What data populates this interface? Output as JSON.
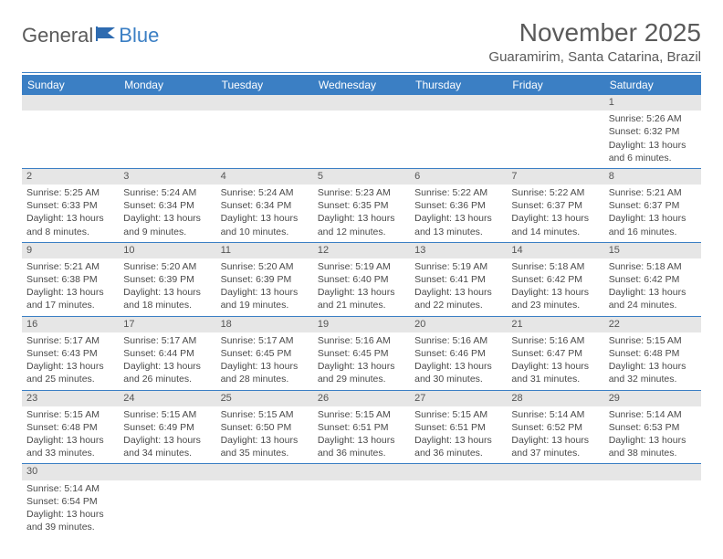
{
  "logo": {
    "text1": "General",
    "text2": "Blue"
  },
  "title": "November 2025",
  "location": "Guaramirim, Santa Catarina, Brazil",
  "colors": {
    "accent": "#3b7fc4",
    "daynum_bg": "#e6e6e6",
    "text": "#4a4a4a"
  },
  "weekdays": [
    "Sunday",
    "Monday",
    "Tuesday",
    "Wednesday",
    "Thursday",
    "Friday",
    "Saturday"
  ],
  "weeks": [
    [
      null,
      null,
      null,
      null,
      null,
      null,
      {
        "d": "1",
        "sr": "Sunrise: 5:26 AM",
        "ss": "Sunset: 6:32 PM",
        "dl": "Daylight: 13 hours and 6 minutes."
      }
    ],
    [
      {
        "d": "2",
        "sr": "Sunrise: 5:25 AM",
        "ss": "Sunset: 6:33 PM",
        "dl": "Daylight: 13 hours and 8 minutes."
      },
      {
        "d": "3",
        "sr": "Sunrise: 5:24 AM",
        "ss": "Sunset: 6:34 PM",
        "dl": "Daylight: 13 hours and 9 minutes."
      },
      {
        "d": "4",
        "sr": "Sunrise: 5:24 AM",
        "ss": "Sunset: 6:34 PM",
        "dl": "Daylight: 13 hours and 10 minutes."
      },
      {
        "d": "5",
        "sr": "Sunrise: 5:23 AM",
        "ss": "Sunset: 6:35 PM",
        "dl": "Daylight: 13 hours and 12 minutes."
      },
      {
        "d": "6",
        "sr": "Sunrise: 5:22 AM",
        "ss": "Sunset: 6:36 PM",
        "dl": "Daylight: 13 hours and 13 minutes."
      },
      {
        "d": "7",
        "sr": "Sunrise: 5:22 AM",
        "ss": "Sunset: 6:37 PM",
        "dl": "Daylight: 13 hours and 14 minutes."
      },
      {
        "d": "8",
        "sr": "Sunrise: 5:21 AM",
        "ss": "Sunset: 6:37 PM",
        "dl": "Daylight: 13 hours and 16 minutes."
      }
    ],
    [
      {
        "d": "9",
        "sr": "Sunrise: 5:21 AM",
        "ss": "Sunset: 6:38 PM",
        "dl": "Daylight: 13 hours and 17 minutes."
      },
      {
        "d": "10",
        "sr": "Sunrise: 5:20 AM",
        "ss": "Sunset: 6:39 PM",
        "dl": "Daylight: 13 hours and 18 minutes."
      },
      {
        "d": "11",
        "sr": "Sunrise: 5:20 AM",
        "ss": "Sunset: 6:39 PM",
        "dl": "Daylight: 13 hours and 19 minutes."
      },
      {
        "d": "12",
        "sr": "Sunrise: 5:19 AM",
        "ss": "Sunset: 6:40 PM",
        "dl": "Daylight: 13 hours and 21 minutes."
      },
      {
        "d": "13",
        "sr": "Sunrise: 5:19 AM",
        "ss": "Sunset: 6:41 PM",
        "dl": "Daylight: 13 hours and 22 minutes."
      },
      {
        "d": "14",
        "sr": "Sunrise: 5:18 AM",
        "ss": "Sunset: 6:42 PM",
        "dl": "Daylight: 13 hours and 23 minutes."
      },
      {
        "d": "15",
        "sr": "Sunrise: 5:18 AM",
        "ss": "Sunset: 6:42 PM",
        "dl": "Daylight: 13 hours and 24 minutes."
      }
    ],
    [
      {
        "d": "16",
        "sr": "Sunrise: 5:17 AM",
        "ss": "Sunset: 6:43 PM",
        "dl": "Daylight: 13 hours and 25 minutes."
      },
      {
        "d": "17",
        "sr": "Sunrise: 5:17 AM",
        "ss": "Sunset: 6:44 PM",
        "dl": "Daylight: 13 hours and 26 minutes."
      },
      {
        "d": "18",
        "sr": "Sunrise: 5:17 AM",
        "ss": "Sunset: 6:45 PM",
        "dl": "Daylight: 13 hours and 28 minutes."
      },
      {
        "d": "19",
        "sr": "Sunrise: 5:16 AM",
        "ss": "Sunset: 6:45 PM",
        "dl": "Daylight: 13 hours and 29 minutes."
      },
      {
        "d": "20",
        "sr": "Sunrise: 5:16 AM",
        "ss": "Sunset: 6:46 PM",
        "dl": "Daylight: 13 hours and 30 minutes."
      },
      {
        "d": "21",
        "sr": "Sunrise: 5:16 AM",
        "ss": "Sunset: 6:47 PM",
        "dl": "Daylight: 13 hours and 31 minutes."
      },
      {
        "d": "22",
        "sr": "Sunrise: 5:15 AM",
        "ss": "Sunset: 6:48 PM",
        "dl": "Daylight: 13 hours and 32 minutes."
      }
    ],
    [
      {
        "d": "23",
        "sr": "Sunrise: 5:15 AM",
        "ss": "Sunset: 6:48 PM",
        "dl": "Daylight: 13 hours and 33 minutes."
      },
      {
        "d": "24",
        "sr": "Sunrise: 5:15 AM",
        "ss": "Sunset: 6:49 PM",
        "dl": "Daylight: 13 hours and 34 minutes."
      },
      {
        "d": "25",
        "sr": "Sunrise: 5:15 AM",
        "ss": "Sunset: 6:50 PM",
        "dl": "Daylight: 13 hours and 35 minutes."
      },
      {
        "d": "26",
        "sr": "Sunrise: 5:15 AM",
        "ss": "Sunset: 6:51 PM",
        "dl": "Daylight: 13 hours and 36 minutes."
      },
      {
        "d": "27",
        "sr": "Sunrise: 5:15 AM",
        "ss": "Sunset: 6:51 PM",
        "dl": "Daylight: 13 hours and 36 minutes."
      },
      {
        "d": "28",
        "sr": "Sunrise: 5:14 AM",
        "ss": "Sunset: 6:52 PM",
        "dl": "Daylight: 13 hours and 37 minutes."
      },
      {
        "d": "29",
        "sr": "Sunrise: 5:14 AM",
        "ss": "Sunset: 6:53 PM",
        "dl": "Daylight: 13 hours and 38 minutes."
      }
    ],
    [
      {
        "d": "30",
        "sr": "Sunrise: 5:14 AM",
        "ss": "Sunset: 6:54 PM",
        "dl": "Daylight: 13 hours and 39 minutes."
      },
      null,
      null,
      null,
      null,
      null,
      null
    ]
  ]
}
